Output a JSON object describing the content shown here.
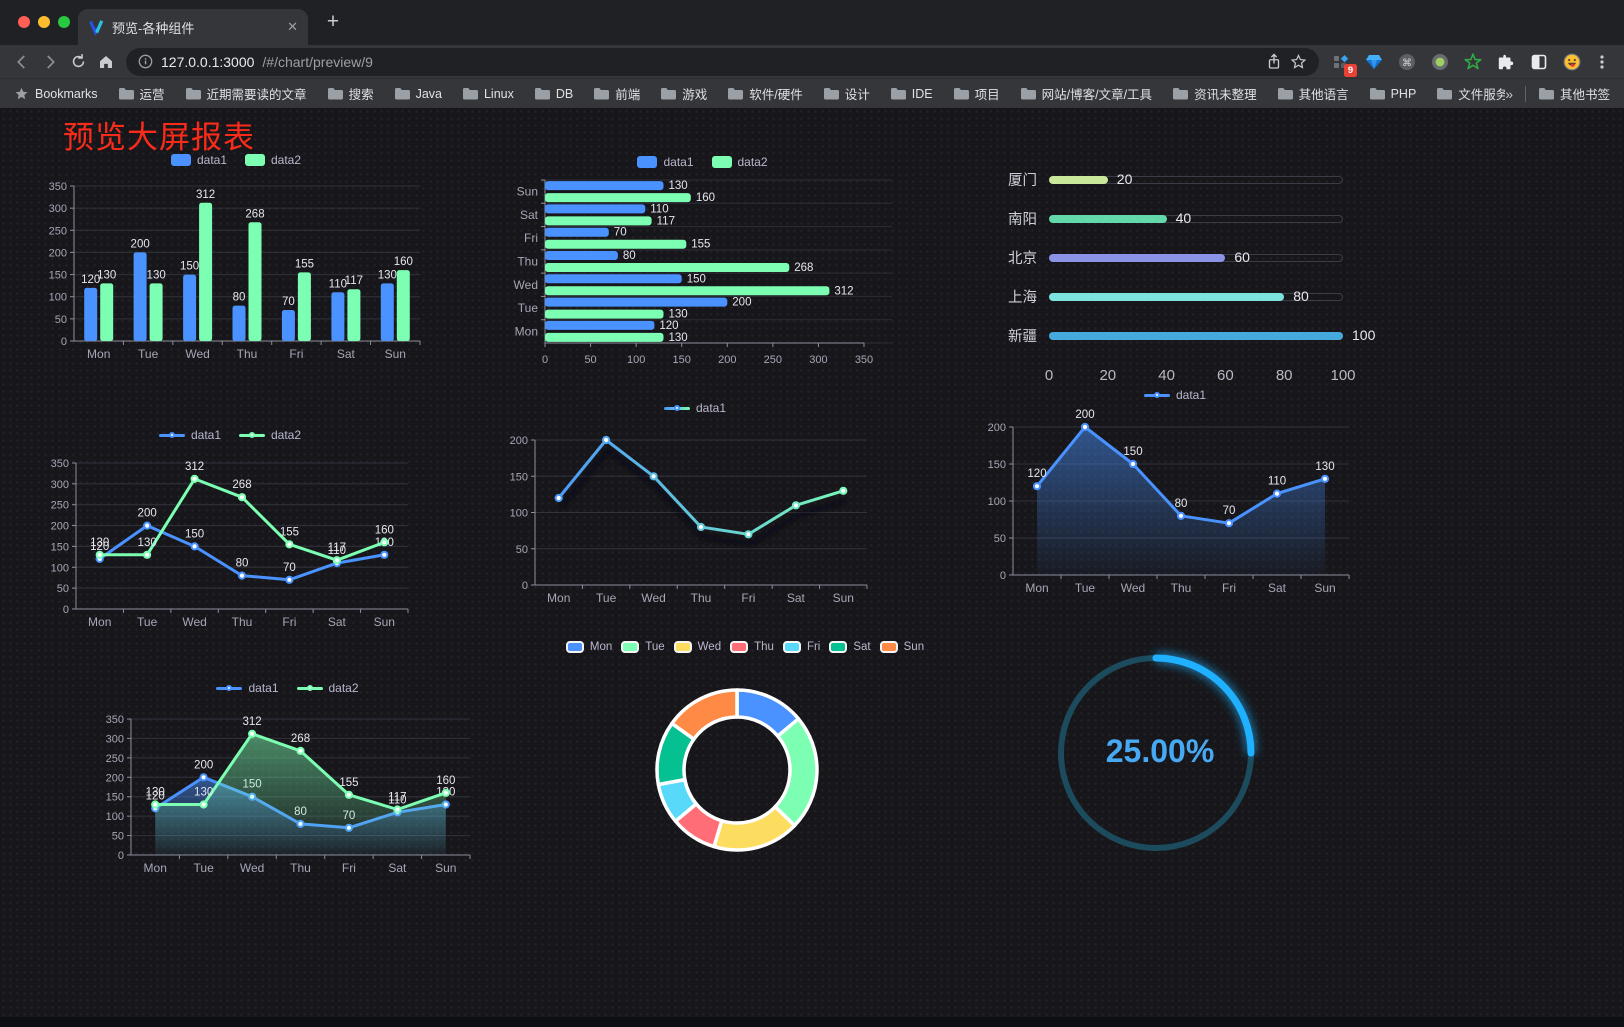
{
  "browser": {
    "tab_title": "预览-各种组件",
    "url_host": "127.0.0.1:3000",
    "url_path": "/#/chart/preview/9",
    "bookmarks_label": "Bookmarks",
    "bookmarks": [
      "运营",
      "近期需要读的文章",
      "搜索",
      "Java",
      "Linux",
      "DB",
      "前端",
      "游戏",
      "软件/硬件",
      "设计",
      "IDE",
      "项目",
      "网站/博客/文章/工具",
      "资讯未整理",
      "其他语言",
      "PHP",
      "文件服务器"
    ],
    "bookmarks_overflow": "»",
    "other_bookmarks_label": "其他书签",
    "extension_badge": "9",
    "new_tab_label": "+",
    "close_tab_label": "✕"
  },
  "page": {
    "title": "预览大屏报表",
    "title_color": "#fb2b1a"
  },
  "chart_data": [
    {
      "id": "grouped-bar",
      "type": "bar",
      "categories": [
        "Mon",
        "Tue",
        "Wed",
        "Thu",
        "Fri",
        "Sat",
        "Sun"
      ],
      "series": [
        {
          "name": "data1",
          "color": "#4992ff",
          "values": [
            120,
            200,
            150,
            80,
            70,
            110,
            130
          ]
        },
        {
          "name": "data2",
          "color": "#7cffb2",
          "values": [
            130,
            130,
            312,
            268,
            155,
            117,
            160
          ]
        }
      ],
      "ylim": [
        0,
        350
      ],
      "ystep": 50,
      "legend_position": "top",
      "value_labels": true,
      "grid": true
    },
    {
      "id": "horizontal-bar",
      "type": "bar-horizontal",
      "categories": [
        "Sun",
        "Sat",
        "Fri",
        "Thu",
        "Wed",
        "Tue",
        "Mon"
      ],
      "series": [
        {
          "name": "data1",
          "color": "#4992ff",
          "values": [
            130,
            110,
            70,
            80,
            150,
            200,
            120
          ]
        },
        {
          "name": "data2",
          "color": "#7cffb2",
          "values": [
            160,
            117,
            155,
            268,
            312,
            130,
            130
          ]
        }
      ],
      "xlim": [
        0,
        350
      ],
      "xstep": 50,
      "legend_position": "top",
      "value_labels": true,
      "grid": true
    },
    {
      "id": "capsule-bars",
      "type": "bar-horizontal",
      "items": [
        {
          "label": "厦门",
          "value": 20,
          "color": "#c9e89a"
        },
        {
          "label": "南阳",
          "value": 40,
          "color": "#63d8ab"
        },
        {
          "label": "北京",
          "value": 60,
          "color": "#8b93e6"
        },
        {
          "label": "上海",
          "value": 80,
          "color": "#7de1de"
        },
        {
          "label": "新疆",
          "value": 100,
          "color": "#45a9dc"
        }
      ],
      "xlim": [
        0,
        100
      ],
      "xticks": [
        0,
        20,
        40,
        60,
        80,
        100
      ],
      "value_labels": true
    },
    {
      "id": "line-two-series",
      "type": "line",
      "categories": [
        "Mon",
        "Tue",
        "Wed",
        "Thu",
        "Fri",
        "Sat",
        "Sun"
      ],
      "series": [
        {
          "name": "data1",
          "color": "#4992ff",
          "values": [
            120,
            200,
            150,
            80,
            70,
            110,
            130
          ]
        },
        {
          "name": "data2",
          "color": "#7cffb2",
          "values": [
            130,
            130,
            312,
            268,
            155,
            117,
            160
          ]
        }
      ],
      "ylim": [
        0,
        350
      ],
      "ystep": 50,
      "legend_position": "top",
      "value_labels": true,
      "grid": true
    },
    {
      "id": "gradient-line",
      "type": "line",
      "categories": [
        "Mon",
        "Tue",
        "Wed",
        "Thu",
        "Fri",
        "Sat",
        "Sun"
      ],
      "series": [
        {
          "name": "data1",
          "color": "#4992ff",
          "color2": "#7cffb2",
          "values": [
            120,
            200,
            150,
            80,
            70,
            110,
            130
          ]
        }
      ],
      "ylim": [
        0,
        200
      ],
      "ystep": 50,
      "legend_position": "top",
      "value_labels": false,
      "shadow": true,
      "grid": true
    },
    {
      "id": "area-line",
      "type": "area",
      "categories": [
        "Mon",
        "Tue",
        "Wed",
        "Thu",
        "Fri",
        "Sat",
        "Sun"
      ],
      "series": [
        {
          "name": "data1",
          "color": "#4992ff",
          "values": [
            120,
            200,
            150,
            80,
            70,
            110,
            130
          ]
        }
      ],
      "ylim": [
        0,
        200
      ],
      "ystep": 50,
      "legend_position": "top",
      "value_labels": true,
      "grid": true
    },
    {
      "id": "area-two-series",
      "type": "area",
      "categories": [
        "Mon",
        "Tue",
        "Wed",
        "Thu",
        "Fri",
        "Sat",
        "Sun"
      ],
      "series": [
        {
          "name": "data1",
          "color": "#4992ff",
          "values": [
            120,
            200,
            150,
            80,
            70,
            110,
            130
          ]
        },
        {
          "name": "data2",
          "color": "#7cffb2",
          "values": [
            130,
            130,
            312,
            268,
            155,
            117,
            160
          ]
        }
      ],
      "ylim": [
        0,
        350
      ],
      "ystep": 50,
      "legend_position": "top",
      "value_labels": true,
      "grid": true
    },
    {
      "id": "rounded-donut",
      "type": "pie",
      "categories": [
        "Mon",
        "Tue",
        "Wed",
        "Thu",
        "Fri",
        "Sat",
        "Sun"
      ],
      "values": [
        120,
        200,
        150,
        80,
        70,
        110,
        130
      ],
      "colors": [
        "#4992ff",
        "#7cffb2",
        "#fddd60",
        "#ff6e76",
        "#58d9f9",
        "#05c091",
        "#ff8a45"
      ],
      "legend_position": "top"
    },
    {
      "id": "progress-ring",
      "type": "gauge",
      "label": "25.00%",
      "percent": 25,
      "color": "#1fb1ff",
      "track_color": "#1d4b5e",
      "text_color": "#47a9f1"
    }
  ]
}
